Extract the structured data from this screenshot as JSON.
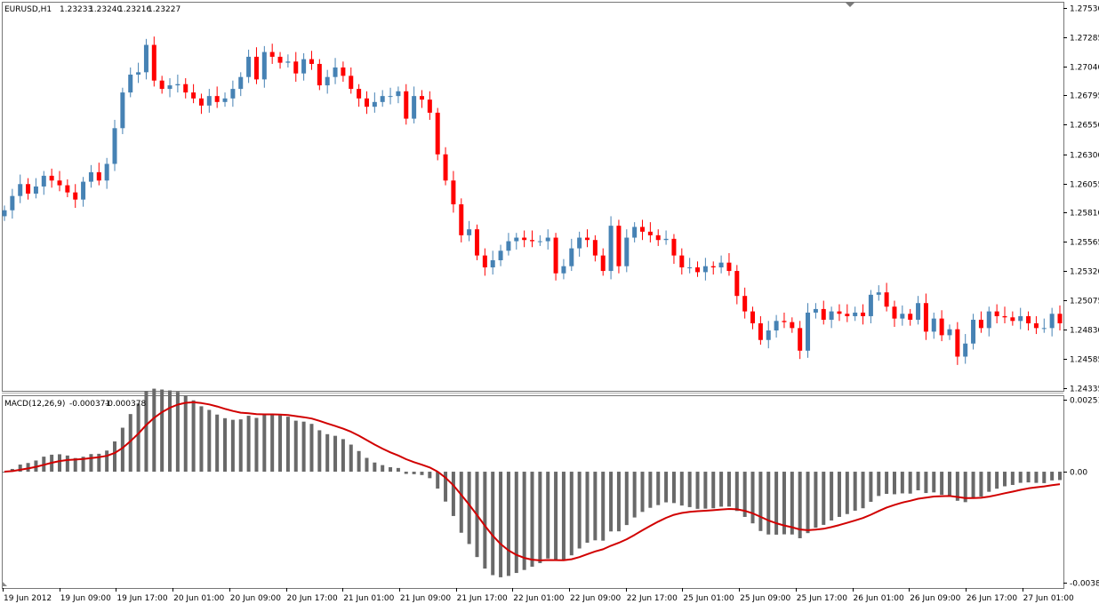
{
  "window": {
    "symbol_label": "EURUSD,H1",
    "ohlc": [
      "1.23233",
      "1.23240",
      "1.23216",
      "1.23227"
    ]
  },
  "indicator": {
    "label": "MACD(12,26,9)",
    "main_value": "-0.000371",
    "signal_value": "-0.000378"
  },
  "colors": {
    "bull": "#4682B4",
    "bear": "#FF0000",
    "histogram": "#696969",
    "signal": "#D10000",
    "frame": "#777777"
  },
  "chart_data": [
    {
      "type": "candlestick",
      "symbol": "EURUSD",
      "timeframe": "H1",
      "ylim": [
        1.24335,
        1.2753
      ],
      "y_ticks": [
        "1.27530",
        "1.27285",
        "1.27040",
        "1.26795",
        "1.26550",
        "1.26300",
        "1.26055",
        "1.25810",
        "1.25565",
        "1.25320",
        "1.25075",
        "1.24830",
        "1.24585",
        "1.24335"
      ],
      "x_ticks": [
        "19 Jun 2012",
        "19 Jun 09:00",
        "19 Jun 17:00",
        "20 Jun 01:00",
        "20 Jun 09:00",
        "20 Jun 17:00",
        "21 Jun 01:00",
        "21 Jun 09:00",
        "21 Jun 17:00",
        "22 Jun 01:00",
        "22 Jun 09:00",
        "22 Jun 17:00",
        "25 Jun 01:00",
        "25 Jun 09:00",
        "25 Jun 17:00",
        "26 Jun 01:00",
        "26 Jun 09:00",
        "26 Jun 17:00",
        "27 Jun 01:00"
      ],
      "closes": [
        1.2583,
        1.2595,
        1.2605,
        1.2597,
        1.2603,
        1.2612,
        1.2608,
        1.2604,
        1.2598,
        1.2592,
        1.2607,
        1.2615,
        1.2608,
        1.2622,
        1.2652,
        1.2682,
        1.2697,
        1.2699,
        1.2722,
        1.2692,
        1.2685,
        1.2688,
        1.2689,
        1.2682,
        1.2677,
        1.2671,
        1.2679,
        1.2674,
        1.2677,
        1.2685,
        1.2695,
        1.2712,
        1.2693,
        1.2716,
        1.2712,
        1.2707,
        1.2708,
        1.2698,
        1.271,
        1.2706,
        1.2688,
        1.2695,
        1.2703,
        1.2696,
        1.2685,
        1.2677,
        1.267,
        1.2674,
        1.2679,
        1.2679,
        1.2683,
        1.266,
        1.2679,
        1.2676,
        1.2665,
        1.263,
        1.2608,
        1.2588,
        1.2562,
        1.2567,
        1.2545,
        1.2535,
        1.2541,
        1.2549,
        1.2557,
        1.256,
        1.2558,
        1.2557,
        1.2557,
        1.256,
        1.253,
        1.2536,
        1.2551,
        1.256,
        1.2558,
        1.2545,
        1.2532,
        1.257,
        1.2536,
        1.256,
        1.2569,
        1.2565,
        1.2562,
        1.2558,
        1.2559,
        1.2545,
        1.2535,
        1.2535,
        1.2531,
        1.2536,
        1.2535,
        1.2539,
        1.2532,
        1.2511,
        1.2498,
        1.2488,
        1.2474,
        1.2482,
        1.249,
        1.2489,
        1.2484,
        1.2465,
        1.2497,
        1.25,
        1.2491,
        1.2498,
        1.2496,
        1.2494,
        1.2497,
        1.2494,
        1.2512,
        1.2514,
        1.2502,
        1.2492,
        1.2496,
        1.2491,
        1.2505,
        1.2481,
        1.2492,
        1.2478,
        1.2483,
        1.246,
        1.2471,
        1.2491,
        1.2484,
        1.2498,
        1.2494,
        1.2493,
        1.249,
        1.2494,
        1.2488,
        1.2484,
        1.2484,
        1.2496,
        1.2488
      ],
      "macd": {
        "label": "MACD(12,26,9)",
        "main": -0.000371,
        "signal": -0.000378,
        "ylim": [
          -0.00387,
          0.00251
        ],
        "y_ticks": [
          "0.00251",
          "0.00",
          "-0.00387"
        ]
      }
    }
  ]
}
